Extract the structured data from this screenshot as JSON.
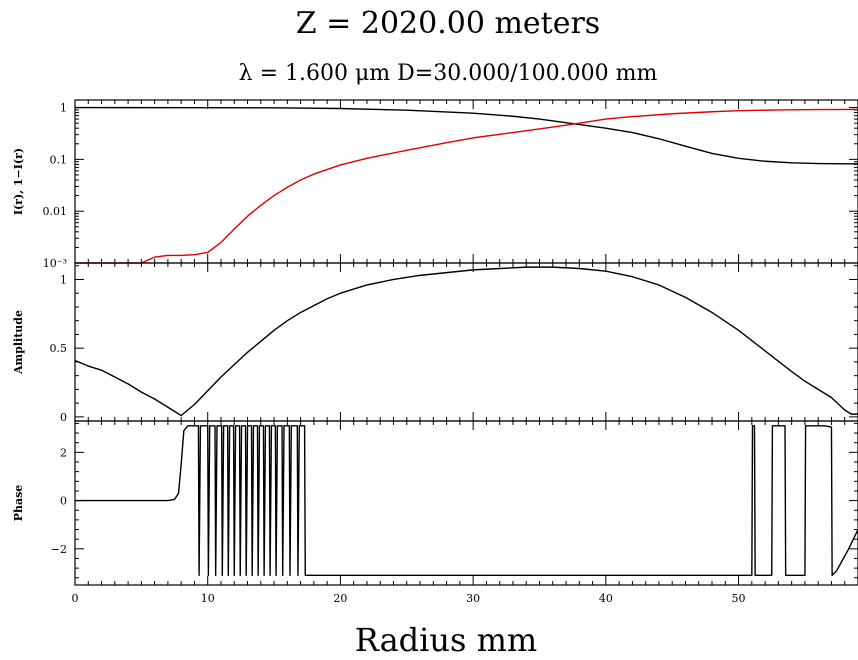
{
  "chart_data": {
    "type": "line",
    "title": "Z = 2020.00 meters",
    "subtitle": "λ = 1.600 μm  D=30.000/100.000 mm",
    "xlabel": "Radius mm",
    "xlim": [
      0,
      59
    ],
    "xticks": [
      0,
      10,
      20,
      30,
      40,
      50
    ],
    "panels": [
      {
        "ylabel": "I(r), 1−I(r)",
        "yscale": "log",
        "ylim": [
          0.001,
          1.4
        ],
        "yticks": [
          {
            "value": 1,
            "label": "1"
          },
          {
            "value": 0.1,
            "label": "0.1"
          },
          {
            "value": 0.01,
            "label": "0.01"
          },
          {
            "value": 0.001,
            "label": "10⁻³"
          }
        ],
        "series": [
          {
            "color": "#000000",
            "points": [
              [
                0,
                1
              ],
              [
                10,
                0.995
              ],
              [
                15,
                0.99
              ],
              [
                20,
                0.96
              ],
              [
                25,
                0.89
              ],
              [
                30,
                0.78
              ],
              [
                33,
                0.68
              ],
              [
                35,
                0.6
              ],
              [
                37,
                0.51
              ],
              [
                40,
                0.4
              ],
              [
                42,
                0.33
              ],
              [
                44,
                0.25
              ],
              [
                46,
                0.18
              ],
              [
                48,
                0.13
              ],
              [
                50,
                0.105
              ],
              [
                52,
                0.092
              ],
              [
                54,
                0.086
              ],
              [
                56,
                0.083
              ],
              [
                58,
                0.082
              ],
              [
                59,
                0.082
              ]
            ]
          },
          {
            "color": "#e00000",
            "points": [
              [
                0,
                0.001
              ],
              [
                5,
                0.001
              ],
              [
                6,
                0.0013
              ],
              [
                7,
                0.0014
              ],
              [
                8,
                0.0014
              ],
              [
                9,
                0.00145
              ],
              [
                10,
                0.0016
              ],
              [
                11,
                0.0025
              ],
              [
                12,
                0.0045
              ],
              [
                13,
                0.008
              ],
              [
                14,
                0.013
              ],
              [
                15,
                0.02
              ],
              [
                16,
                0.029
              ],
              [
                17,
                0.04
              ],
              [
                18,
                0.052
              ],
              [
                20,
                0.078
              ],
              [
                22,
                0.105
              ],
              [
                25,
                0.15
              ],
              [
                28,
                0.21
              ],
              [
                30,
                0.26
              ],
              [
                33,
                0.33
              ],
              [
                36,
                0.42
              ],
              [
                38,
                0.5
              ],
              [
                40,
                0.6
              ],
              [
                42,
                0.67
              ],
              [
                45,
                0.76
              ],
              [
                48,
                0.83
              ],
              [
                50,
                0.87
              ],
              [
                53,
                0.9
              ],
              [
                56,
                0.915
              ],
              [
                59,
                0.92
              ]
            ]
          }
        ]
      },
      {
        "ylabel": "Amplitude",
        "yscale": "linear",
        "ylim": [
          -0.03,
          1.12
        ],
        "yticks": [
          {
            "value": 1,
            "label": "1"
          },
          {
            "value": 0.5,
            "label": "0.5"
          },
          {
            "value": 0,
            "label": "0"
          }
        ],
        "series": [
          {
            "color": "#000000",
            "points": [
              [
                0,
                0.41
              ],
              [
                1,
                0.37
              ],
              [
                2,
                0.34
              ],
              [
                3,
                0.29
              ],
              [
                4,
                0.24
              ],
              [
                5,
                0.18
              ],
              [
                6,
                0.13
              ],
              [
                7,
                0.07
              ],
              [
                8,
                0.01
              ],
              [
                9,
                0.09
              ],
              [
                10,
                0.19
              ],
              [
                11,
                0.29
              ],
              [
                12,
                0.38
              ],
              [
                13,
                0.47
              ],
              [
                14,
                0.55
              ],
              [
                15,
                0.63
              ],
              [
                16,
                0.7
              ],
              [
                17,
                0.76
              ],
              [
                18,
                0.81
              ],
              [
                19,
                0.86
              ],
              [
                20,
                0.9
              ],
              [
                22,
                0.96
              ],
              [
                24,
                1.0
              ],
              [
                26,
                1.03
              ],
              [
                28,
                1.05
              ],
              [
                30,
                1.07
              ],
              [
                32,
                1.08
              ],
              [
                34,
                1.09
              ],
              [
                36,
                1.09
              ],
              [
                38,
                1.08
              ],
              [
                40,
                1.06
              ],
              [
                42,
                1.02
              ],
              [
                44,
                0.96
              ],
              [
                46,
                0.87
              ],
              [
                48,
                0.76
              ],
              [
                50,
                0.63
              ],
              [
                52,
                0.48
              ],
              [
                54,
                0.33
              ],
              [
                55,
                0.26
              ],
              [
                56,
                0.2
              ],
              [
                57,
                0.14
              ],
              [
                58,
                0.05
              ],
              [
                58.5,
                0.02
              ],
              [
                59,
                0.02
              ]
            ]
          }
        ]
      },
      {
        "ylabel": "Phase",
        "yscale": "linear",
        "ylim": [
          -3.5,
          3.3
        ],
        "yticks": [
          {
            "value": 2,
            "label": "2"
          },
          {
            "value": 0,
            "label": "0"
          },
          {
            "value": -2,
            "label": "−2"
          }
        ],
        "series": [
          {
            "color": "#000000",
            "points": [
              [
                0,
                0
              ],
              [
                7,
                0
              ],
              [
                7.5,
                0.05
              ],
              [
                7.8,
                0.3
              ],
              [
                8,
                1.5
              ],
              [
                8.2,
                2.9
              ],
              [
                8.5,
                3.1
              ],
              [
                9.3,
                3.1
              ],
              [
                9.35,
                -3.1
              ],
              [
                9.45,
                3.1
              ],
              [
                10,
                3.1
              ],
              [
                10.05,
                -3.1
              ],
              [
                10.15,
                3.1
              ],
              [
                10.55,
                3.1
              ],
              [
                10.6,
                -3.1
              ],
              [
                10.7,
                3.1
              ],
              [
                11.05,
                3.1
              ],
              [
                11.1,
                -3.1
              ],
              [
                11.2,
                3.1
              ],
              [
                11.5,
                3.1
              ],
              [
                11.55,
                -3.1
              ],
              [
                11.65,
                3.1
              ],
              [
                11.95,
                3.1
              ],
              [
                12.0,
                -3.1
              ],
              [
                12.1,
                3.1
              ],
              [
                12.4,
                3.1
              ],
              [
                12.45,
                -3.1
              ],
              [
                12.55,
                3.1
              ],
              [
                12.85,
                3.1
              ],
              [
                12.9,
                -3.1
              ],
              [
                13.0,
                3.1
              ],
              [
                13.3,
                3.1
              ],
              [
                13.35,
                -3.1
              ],
              [
                13.45,
                3.1
              ],
              [
                13.75,
                3.1
              ],
              [
                13.8,
                -3.1
              ],
              [
                13.9,
                3.1
              ],
              [
                14.2,
                3.1
              ],
              [
                14.25,
                -3.1
              ],
              [
                14.35,
                3.1
              ],
              [
                14.65,
                3.1
              ],
              [
                14.7,
                -3.1
              ],
              [
                14.8,
                3.1
              ],
              [
                15.1,
                3.1
              ],
              [
                15.15,
                -3.1
              ],
              [
                15.25,
                3.1
              ],
              [
                15.6,
                3.1
              ],
              [
                15.65,
                -3.1
              ],
              [
                15.75,
                3.1
              ],
              [
                16.15,
                3.1
              ],
              [
                16.2,
                -3.1
              ],
              [
                16.3,
                3.1
              ],
              [
                16.75,
                3.1
              ],
              [
                16.8,
                -3.1
              ],
              [
                16.9,
                3.1
              ],
              [
                17.3,
                3.1
              ],
              [
                17.35,
                -3.1
              ],
              [
                51.0,
                -3.1
              ],
              [
                51.05,
                3.1
              ],
              [
                51.2,
                3.1
              ],
              [
                51.25,
                -3.1
              ],
              [
                52.5,
                -3.1
              ],
              [
                52.55,
                3.1
              ],
              [
                53.5,
                3.1
              ],
              [
                53.55,
                -3.1
              ],
              [
                55,
                -3.1
              ],
              [
                55.05,
                3.1
              ],
              [
                56.5,
                3.1
              ],
              [
                57,
                3.05
              ],
              [
                57.05,
                -3.1
              ],
              [
                57.4,
                -2.9
              ],
              [
                57.8,
                -2.5
              ],
              [
                58.3,
                -2.0
              ],
              [
                59,
                -1.2
              ]
            ]
          }
        ]
      }
    ]
  }
}
